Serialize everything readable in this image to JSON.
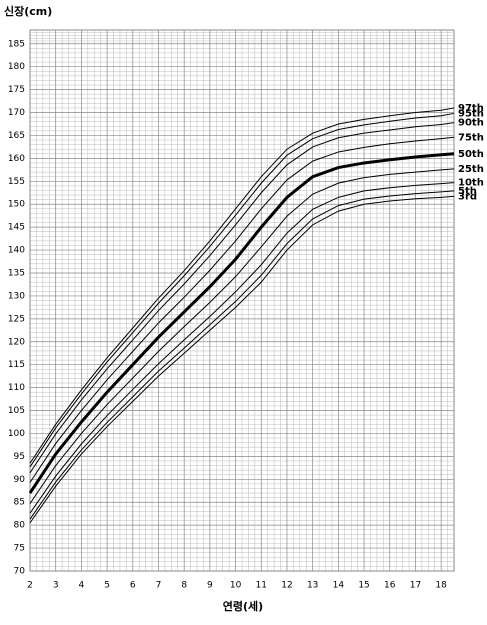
{
  "chart_data": {
    "type": "line",
    "y_label": "신장(cm)",
    "x_label": "연령(세)",
    "x": [
      2,
      3,
      4,
      5,
      6,
      7,
      8,
      9,
      10,
      11,
      12,
      13,
      14,
      15,
      16,
      17,
      18,
      18.5
    ],
    "xlim": [
      2,
      18.5
    ],
    "xticks": [
      2,
      3,
      4,
      5,
      6,
      7,
      8,
      9,
      10,
      11,
      12,
      13,
      14,
      15,
      16,
      17,
      18
    ],
    "ylim": [
      70,
      188
    ],
    "yticks": [
      70,
      75,
      80,
      85,
      90,
      95,
      100,
      105,
      110,
      115,
      120,
      125,
      130,
      135,
      140,
      145,
      150,
      155,
      160,
      165,
      170,
      175,
      180,
      185
    ],
    "grid": true,
    "series": [
      {
        "name": "97th",
        "color": "#000000",
        "width": 1,
        "values": [
          93.5,
          102,
          109.5,
          116.5,
          123,
          129.5,
          135.5,
          142,
          149,
          156,
          162,
          165.5,
          167.5,
          168.5,
          169.3,
          170,
          170.5,
          171
        ]
      },
      {
        "name": "95th",
        "color": "#000000",
        "width": 1,
        "values": [
          92.7,
          101.2,
          108.6,
          115.6,
          122,
          128.4,
          134.4,
          140.8,
          147.6,
          154.6,
          160.7,
          164.3,
          166.3,
          167.3,
          168.1,
          168.8,
          169.3,
          169.8
        ]
      },
      {
        "name": "90th",
        "color": "#000000",
        "width": 1,
        "values": [
          91.4,
          99.9,
          107.3,
          114.1,
          120.4,
          126.8,
          132.6,
          138.8,
          145.5,
          152.5,
          158.6,
          162.5,
          164.5,
          165.5,
          166.2,
          166.9,
          167.4,
          167.8
        ]
      },
      {
        "name": "75th",
        "color": "#000000",
        "width": 1,
        "values": [
          89.3,
          97.8,
          105,
          111.7,
          117.9,
          124.1,
          129.7,
          135.6,
          142,
          149,
          155.3,
          159.4,
          161.4,
          162.4,
          163.2,
          163.8,
          164.3,
          164.6
        ]
      },
      {
        "name": "50th",
        "color": "#000000",
        "width": 3,
        "values": [
          87,
          95.5,
          102.5,
          109,
          115,
          121,
          126.5,
          132,
          138,
          145,
          151.5,
          156,
          158,
          159,
          159.7,
          160.3,
          160.8,
          161
        ]
      },
      {
        "name": "25th",
        "color": "#000000",
        "width": 1,
        "values": [
          84.7,
          93,
          100,
          106.3,
          112.1,
          117.9,
          123.3,
          128.6,
          134.2,
          140.7,
          147.4,
          152.2,
          154.6,
          155.8,
          156.5,
          157,
          157.5,
          157.7
        ]
      },
      {
        "name": "10th",
        "color": "#000000",
        "width": 1,
        "values": [
          82.6,
          90.7,
          97.7,
          103.9,
          109.6,
          115.2,
          120.4,
          125.5,
          130.9,
          136.8,
          143.7,
          148.9,
          151.5,
          152.9,
          153.6,
          154.1,
          154.5,
          154.7
        ]
      },
      {
        "name": "5th",
        "color": "#000000",
        "width": 1,
        "values": [
          81.3,
          89.4,
          96.4,
          102.4,
          108,
          113.6,
          118.6,
          123.7,
          128.8,
          134.5,
          141.4,
          146.8,
          149.7,
          151.1,
          151.8,
          152.3,
          152.7,
          152.9
        ]
      },
      {
        "name": "3rd",
        "color": "#000000",
        "width": 1,
        "values": [
          80.5,
          88.5,
          95.5,
          101.5,
          107,
          112.5,
          117.5,
          122.5,
          127.5,
          133,
          140,
          145.5,
          148.5,
          150,
          150.7,
          151.2,
          151.5,
          151.7
        ]
      }
    ]
  }
}
